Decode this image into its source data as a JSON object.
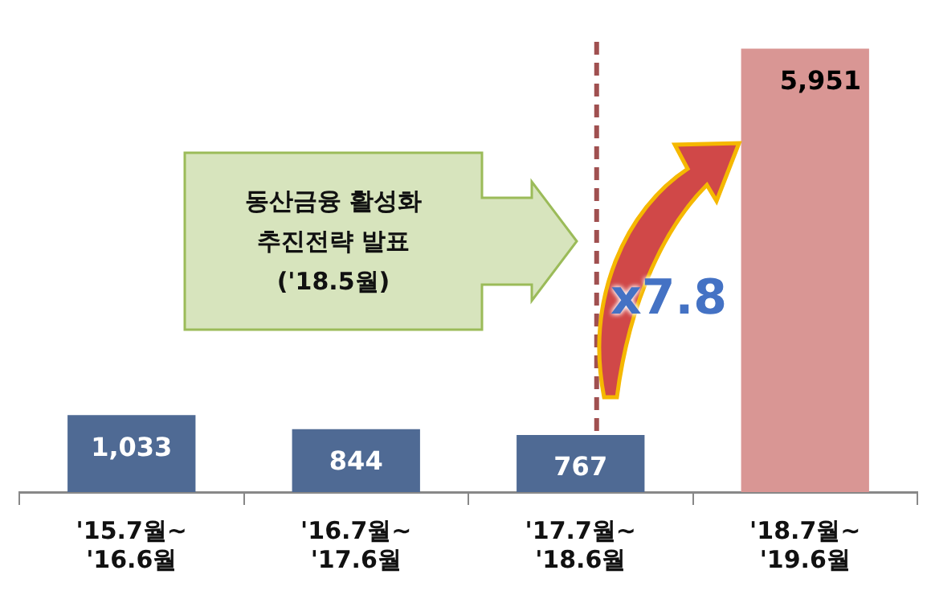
{
  "chart_data": {
    "type": "bar",
    "categories": [
      "'15.7월~\n'16.6월",
      "'16.7월~\n'17.6월",
      "'17.7월~\n'18.6월",
      "'18.7월~\n'19.6월"
    ],
    "values": [
      1033,
      844,
      767,
      5951
    ],
    "colors": [
      "#4f6a94",
      "#4f6a94",
      "#4f6a94",
      "#d99694"
    ],
    "data_labels": true,
    "value_labels": [
      "1,033",
      "844",
      "767",
      "5,951"
    ],
    "ref_lines": [
      {
        "axis": "x",
        "value": "'17.7월~\n'18.6월",
        "color": "#a05050",
        "line_style": "dashed"
      }
    ],
    "annotations": [
      "동산금융 활성화\n추진전략 발표\n('18.5월)",
      "x7.8"
    ],
    "grid": false,
    "legend": false
  }
}
